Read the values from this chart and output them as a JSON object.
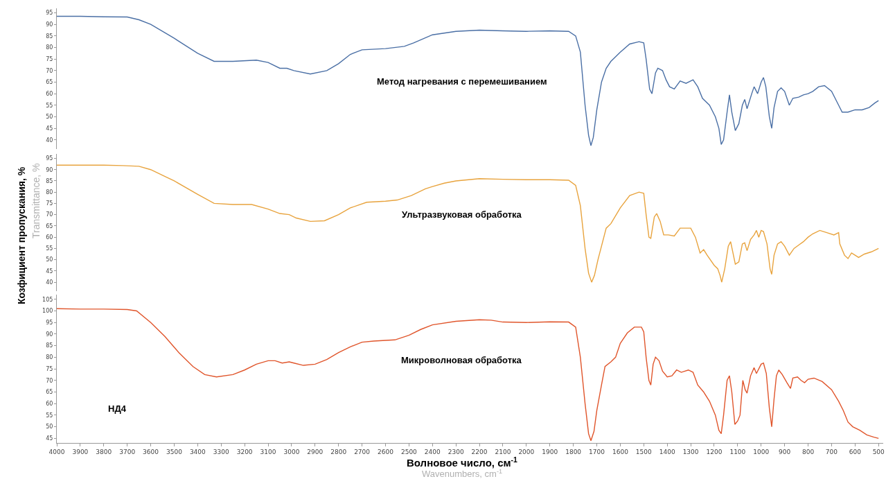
{
  "chart_data": [
    {
      "type": "line",
      "xlim": [
        4000,
        480
      ],
      "xticks": [
        4000,
        3900,
        3800,
        3700,
        3600,
        3500,
        3400,
        3300,
        3200,
        3100,
        3000,
        2900,
        2800,
        2700,
        2600,
        2500,
        2400,
        2300,
        2200,
        2100,
        2000,
        1900,
        1800,
        1700,
        1600,
        1500,
        1400,
        1300,
        1200,
        1100,
        1000,
        900,
        800,
        700,
        600,
        500
      ],
      "ylim": [
        36,
        97
      ],
      "yticks": [
        40,
        45,
        50,
        55,
        60,
        65,
        70,
        75,
        80,
        85,
        90,
        95
      ],
      "tick_labels": "y",
      "x": [
        4000,
        3900,
        3800,
        3700,
        3650,
        3600,
        3500,
        3400,
        3330,
        3250,
        3150,
        3100,
        3050,
        3020,
        2990,
        2920,
        2850,
        2800,
        2750,
        2700,
        2600,
        2520,
        2480,
        2400,
        2300,
        2200,
        2100,
        2000,
        1900,
        1820,
        1790,
        1770,
        1750,
        1735,
        1725,
        1715,
        1700,
        1680,
        1660,
        1640,
        1600,
        1560,
        1520,
        1500,
        1490,
        1475,
        1465,
        1450,
        1440,
        1420,
        1405,
        1390,
        1370,
        1345,
        1320,
        1290,
        1270,
        1250,
        1220,
        1195,
        1180,
        1170,
        1160,
        1145,
        1135,
        1125,
        1110,
        1095,
        1080,
        1070,
        1060,
        1040,
        1030,
        1015,
        1000,
        990,
        980,
        965,
        955,
        945,
        930,
        915,
        900,
        880,
        865,
        840,
        820,
        800,
        780,
        755,
        730,
        700,
        670,
        655,
        630,
        600,
        570,
        540,
        515,
        500
      ],
      "series": [
        {
          "name": "Метод нагревания с перемешиванием",
          "color": "#4a6fa5",
          "values": [
            93.5,
            93.5,
            93.3,
            93.2,
            92,
            90,
            84,
            77.5,
            74,
            74,
            74.5,
            73.5,
            71,
            71,
            70,
            68.5,
            70,
            73,
            77,
            79,
            79.5,
            80.5,
            82,
            85.5,
            87,
            87.5,
            87.2,
            87,
            87.2,
            87,
            85,
            78,
            55,
            42,
            37.5,
            41,
            53,
            65,
            71,
            74,
            78,
            81.5,
            82.5,
            82,
            75,
            62,
            60,
            69,
            71,
            70,
            66,
            63,
            62,
            65.5,
            64.5,
            66,
            63,
            58,
            55,
            50,
            45,
            38,
            40,
            52,
            59.5,
            52,
            44,
            47,
            55,
            57.5,
            53.5,
            60,
            63,
            60,
            65,
            67,
            63,
            50,
            45,
            54,
            61,
            62.5,
            61,
            55,
            58,
            58.5,
            59.5,
            60,
            61,
            63,
            63.5,
            61,
            55,
            52,
            52,
            53,
            53,
            54,
            56,
            57
          ]
        }
      ]
    },
    {
      "type": "line",
      "xlim": [
        4000,
        480
      ],
      "xticks": [
        4000,
        3900,
        3800,
        3700,
        3600,
        3500,
        3400,
        3300,
        3200,
        3100,
        3000,
        2900,
        2800,
        2700,
        2600,
        2500,
        2400,
        2300,
        2200,
        2100,
        2000,
        1900,
        1800,
        1700,
        1600,
        1500,
        1400,
        1300,
        1200,
        1100,
        1000,
        900,
        800,
        700,
        600,
        500
      ],
      "ylim": [
        36,
        97
      ],
      "yticks": [
        40,
        45,
        50,
        55,
        60,
        65,
        70,
        75,
        80,
        85,
        90,
        95
      ],
      "tick_labels": "y",
      "ylabel": "Козфициент пропускания, %",
      "annotations": [
        "Transmittance, %"
      ],
      "x": [
        4000,
        3900,
        3800,
        3720,
        3650,
        3600,
        3500,
        3400,
        3330,
        3250,
        3170,
        3100,
        3050,
        3010,
        2980,
        2920,
        2860,
        2800,
        2750,
        2680,
        2600,
        2550,
        2490,
        2430,
        2400,
        2350,
        2300,
        2200,
        2100,
        2000,
        1900,
        1820,
        1790,
        1770,
        1750,
        1735,
        1722,
        1710,
        1695,
        1680,
        1660,
        1640,
        1600,
        1560,
        1520,
        1500,
        1490,
        1478,
        1470,
        1455,
        1445,
        1430,
        1415,
        1395,
        1370,
        1345,
        1320,
        1300,
        1280,
        1260,
        1245,
        1230,
        1200,
        1185,
        1175,
        1168,
        1155,
        1140,
        1130,
        1120,
        1110,
        1095,
        1080,
        1070,
        1060,
        1045,
        1030,
        1020,
        1010,
        1000,
        990,
        975,
        962,
        955,
        945,
        930,
        915,
        900,
        880,
        860,
        840,
        820,
        800,
        780,
        750,
        720,
        690,
        670,
        665,
        645,
        630,
        615,
        600,
        585,
        560,
        530,
        500
      ],
      "series": [
        {
          "name": "Ультразвуковая обработка",
          "color": "#e8a33d",
          "values": [
            92,
            92,
            92,
            91.8,
            91.5,
            90,
            85,
            79,
            75,
            74.5,
            74.5,
            72.5,
            70.5,
            70,
            68.5,
            67,
            67.3,
            70,
            73,
            75.5,
            76,
            76.5,
            78.5,
            81.5,
            82.5,
            84,
            85,
            86,
            85.7,
            85.5,
            85.5,
            85.3,
            83,
            74,
            55,
            44,
            40,
            43,
            50,
            56,
            64,
            66,
            73,
            78.5,
            80,
            79.5,
            70,
            60,
            59.5,
            69,
            70.5,
            67,
            61,
            61,
            60.5,
            64,
            64,
            64,
            60,
            53,
            54.5,
            52,
            47.5,
            46,
            43,
            40,
            46,
            56,
            58,
            53,
            48,
            49,
            57,
            57.5,
            54,
            59,
            61,
            63,
            60,
            63,
            62.5,
            57,
            46,
            43.5,
            52,
            57,
            58,
            56,
            52,
            55,
            56.5,
            58,
            60,
            61.5,
            63,
            62,
            61,
            62,
            57,
            52,
            50.5,
            53,
            52,
            51,
            52.5,
            53.5,
            55
          ]
        }
      ]
    },
    {
      "type": "line",
      "xlim": [
        4000,
        480
      ],
      "xticks": [
        4000,
        3900,
        3800,
        3700,
        3600,
        3500,
        3400,
        3300,
        3200,
        3100,
        3000,
        2900,
        2800,
        2700,
        2600,
        2500,
        2400,
        2300,
        2200,
        2100,
        2000,
        1900,
        1800,
        1700,
        1600,
        1500,
        1400,
        1300,
        1200,
        1100,
        1000,
        900,
        800,
        700,
        600,
        500
      ],
      "ylim": [
        43,
        107
      ],
      "yticks": [
        45,
        50,
        55,
        60,
        65,
        70,
        75,
        80,
        85,
        90,
        95,
        100,
        105
      ],
      "xlabel": "Волновое число, см$^{-1}$",
      "annotations": [
        "НД4",
        "Wavenumbers, cm$^{-1}$"
      ],
      "x": [
        4000,
        3900,
        3800,
        3700,
        3660,
        3600,
        3540,
        3480,
        3420,
        3370,
        3320,
        3250,
        3200,
        3150,
        3100,
        3070,
        3040,
        3010,
        2990,
        2950,
        2900,
        2850,
        2800,
        2750,
        2700,
        2650,
        2560,
        2500,
        2450,
        2400,
        2300,
        2200,
        2150,
        2100,
        2000,
        1900,
        1820,
        1790,
        1770,
        1750,
        1735,
        1725,
        1712,
        1700,
        1680,
        1665,
        1640,
        1620,
        1600,
        1570,
        1540,
        1510,
        1500,
        1490,
        1478,
        1470,
        1460,
        1450,
        1435,
        1420,
        1400,
        1380,
        1360,
        1340,
        1310,
        1290,
        1270,
        1245,
        1220,
        1195,
        1180,
        1170,
        1160,
        1145,
        1135,
        1125,
        1112,
        1100,
        1090,
        1078,
        1068,
        1060,
        1045,
        1030,
        1020,
        1000,
        990,
        978,
        965,
        955,
        945,
        935,
        925,
        910,
        890,
        875,
        865,
        845,
        830,
        815,
        800,
        775,
        740,
        700,
        670,
        650,
        630,
        610,
        580,
        550,
        520,
        500
      ],
      "series": [
        {
          "name": "Микроволновая обработка",
          "color": "#e0552b",
          "values": [
            101,
            100.8,
            100.8,
            100.6,
            100,
            95,
            89,
            82,
            76,
            72.5,
            71.5,
            72.5,
            74.5,
            77,
            78.5,
            78.5,
            77.5,
            78,
            77.5,
            76.5,
            77,
            79,
            82,
            84.5,
            86.5,
            87,
            87.5,
            89.5,
            92,
            94,
            95.5,
            96.2,
            96,
            95.2,
            95,
            95.3,
            95.2,
            93,
            80,
            60,
            47,
            44,
            48,
            57,
            68,
            76,
            78,
            80,
            86,
            90.5,
            93,
            93,
            91,
            80,
            70,
            68,
            77,
            80,
            78.5,
            74,
            71.5,
            72,
            74.5,
            73.5,
            74.5,
            73.5,
            68,
            65,
            61,
            55,
            48.5,
            47,
            55,
            70,
            72,
            65,
            51,
            52.5,
            55,
            70,
            66,
            64.5,
            72,
            75.5,
            73,
            77,
            77.5,
            73,
            58,
            50,
            62,
            72,
            74.5,
            72.5,
            69,
            66.5,
            71,
            71.5,
            70,
            69,
            70.5,
            71,
            69.5,
            66,
            61,
            57,
            52,
            50,
            48.5,
            46.5,
            45.5,
            45
          ]
        }
      ]
    }
  ]
}
